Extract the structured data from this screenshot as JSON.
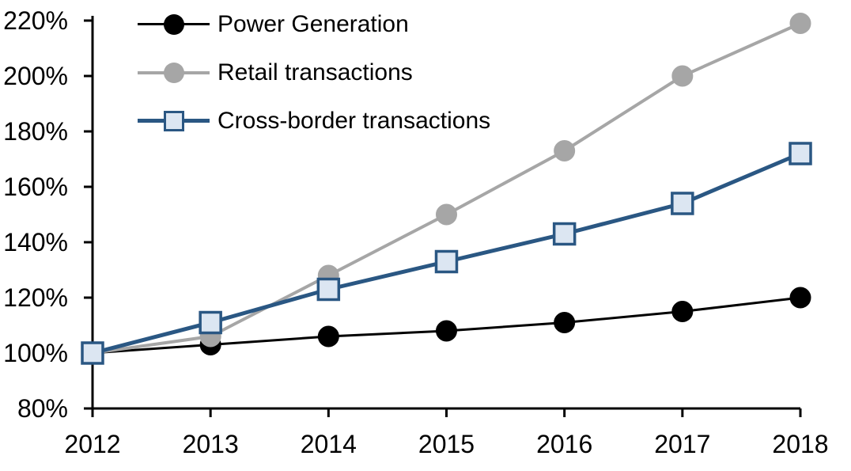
{
  "chart_data": {
    "type": "line",
    "title": "",
    "x": [
      2012,
      2013,
      2014,
      2015,
      2016,
      2017,
      2018
    ],
    "x_tick_labels": [
      "2012",
      "2013",
      "2014",
      "2015",
      "2016",
      "2017",
      "2018"
    ],
    "y_axis": {
      "min": 80,
      "max": 220,
      "step": 20,
      "unit": "%",
      "tick_labels": [
        "80%",
        "100%",
        "120%",
        "140%",
        "160%",
        "180%",
        "200%",
        "220%"
      ]
    },
    "grid": false,
    "legend_position": "top-left-inside",
    "series": [
      {
        "name": "Power Generation",
        "marker": "circle",
        "line_color": "#000000",
        "marker_fill": "#000000",
        "marker_stroke": "#000000",
        "line_width": 3,
        "values": [
          100,
          103,
          106,
          108,
          111,
          115,
          120
        ]
      },
      {
        "name": "Retail transactions",
        "marker": "circle",
        "line_color": "#A6A6A6",
        "marker_fill": "#A6A6A6",
        "marker_stroke": "#A6A6A6",
        "line_width": 4,
        "values": [
          100,
          106,
          128,
          150,
          173,
          200,
          219
        ]
      },
      {
        "name": "Cross-border transactions",
        "marker": "square",
        "line_color": "#2A5783",
        "marker_fill": "#DCE6F2",
        "marker_stroke": "#2A5783",
        "line_width": 5,
        "values": [
          100,
          111,
          123,
          133,
          143,
          154,
          172
        ]
      }
    ],
    "colors": {
      "background": "#FFFFFF",
      "axis": "#000000"
    }
  }
}
